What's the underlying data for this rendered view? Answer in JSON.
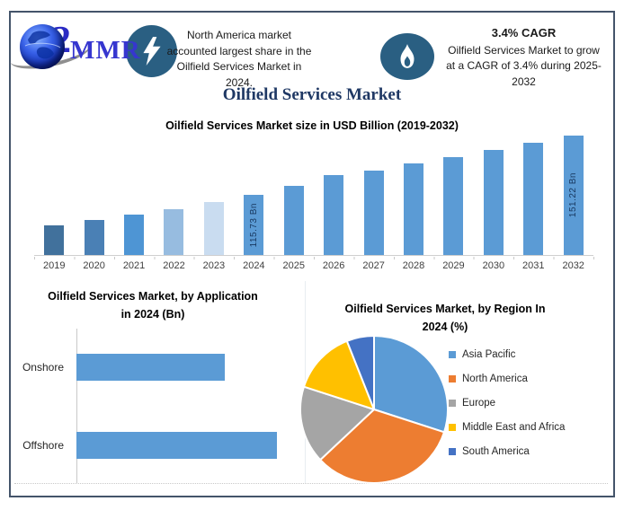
{
  "title": "Oilfield Services Market",
  "header": {
    "logo": {
      "prefix": "2",
      "text": "MMR"
    },
    "note_left": {
      "icon": "lightning-bolt",
      "lines": [
        "North America market",
        "accounted largest share in the",
        "Oilfield Services Market in 2024."
      ]
    },
    "note_right": {
      "icon": "flame",
      "heading": "3.4% CAGR",
      "lines": [
        "Oilfield Services Market to grow",
        "at a CAGR of 3.4% during 2025-",
        "2032"
      ]
    }
  },
  "colors": {
    "frame": "#44546A",
    "badge_circle": "#2A5F82",
    "main_title": "#1F3864",
    "bar_default": "#5B9BD5",
    "bar_data_label": "#17375E",
    "logo_blue": "#3636cf"
  },
  "chart_data": [
    {
      "id": "market_size",
      "type": "bar",
      "title": "Oilfield Services Market size in USD Billion (2019-2032)",
      "categories": [
        "2019",
        "2020",
        "2021",
        "2022",
        "2023",
        "2024",
        "2025",
        "2026",
        "2027",
        "2028",
        "2029",
        "2030",
        "2031",
        "2032"
      ],
      "values": [
        97,
        100,
        103.5,
        107,
        111,
        115.73,
        121,
        127.5,
        130,
        134.5,
        138.5,
        142.5,
        147,
        151.22
      ],
      "unit": "USD Bn",
      "values_note": "only 2024 and 2032 are labeled in the image; other values estimated from bar heights",
      "data_labels": {
        "2024": "115.73 Bn",
        "2032": "151.22 Bn"
      },
      "bar_colors": [
        "#41719C",
        "#4A80B5",
        "#4E95D4",
        "#97BCE0",
        "#C9DCF0",
        "#5B9BD5",
        "#5B9BD5",
        "#5B9BD5",
        "#5B9BD5",
        "#5B9BD5",
        "#5B9BD5",
        "#5B9BD5",
        "#5B9BD5",
        "#5B9BD5"
      ],
      "ylim": [
        79,
        155
      ],
      "grid": false,
      "xlabel": "",
      "ylabel": ""
    },
    {
      "id": "application",
      "type": "bar",
      "orientation": "horizontal",
      "title": "Oilfield Services Market, by Application in 2024 (Bn)",
      "title_lines": [
        "Oilfield Services Market, by Application",
        "in 2024 (Bn)"
      ],
      "categories": [
        "Onshore",
        "Offshore"
      ],
      "values": [
        74,
        100
      ],
      "values_note": "relative bar lengths (% of max); numeric values not shown in image",
      "bar_color": "#5B9BD5",
      "grid": false
    },
    {
      "id": "region",
      "type": "pie",
      "title": "Oilfield Services Market, by Region In 2024 (%)",
      "title_lines": [
        "Oilfield Services Market, by Region In",
        "2024 (%)"
      ],
      "labels": [
        "Asia Pacific",
        "North America",
        "Europe",
        "Middle East and Africa",
        "South America"
      ],
      "values": [
        30,
        33,
        17,
        14,
        6
      ],
      "values_note": "estimated from slice angles; percentages not labeled in image",
      "colors": [
        "#5B9BD5",
        "#ED7D31",
        "#A5A5A5",
        "#FFC000",
        "#4472C4"
      ],
      "legend_position": "right",
      "start_angle_deg": -90,
      "direction": "clockwise"
    }
  ]
}
